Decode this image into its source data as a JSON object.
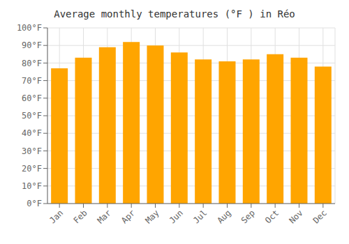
{
  "chart_data": {
    "type": "bar",
    "title": "Average monthly temperatures (°F ) in Réo",
    "categories": [
      "Jan",
      "Feb",
      "Mar",
      "Apr",
      "May",
      "Jun",
      "Jul",
      "Aug",
      "Sep",
      "Oct",
      "Nov",
      "Dec"
    ],
    "values": [
      77,
      83,
      89,
      92,
      90,
      86,
      82,
      81,
      82,
      85,
      83,
      78
    ],
    "color": "#FFA500",
    "ylim": [
      0,
      100
    ],
    "yticks": [
      {
        "value": 0,
        "label": "0°F"
      },
      {
        "value": 10,
        "label": "10°F"
      },
      {
        "value": 20,
        "label": "20°F"
      },
      {
        "value": 30,
        "label": "30°F"
      },
      {
        "value": 40,
        "label": "40°F"
      },
      {
        "value": 50,
        "label": "50°F"
      },
      {
        "value": 60,
        "label": "60°F"
      },
      {
        "value": 70,
        "label": "70°F"
      },
      {
        "value": 80,
        "label": "80°F"
      },
      {
        "value": 90,
        "label": "90°F"
      },
      {
        "value": 100,
        "label": "100°F"
      }
    ],
    "grid": true
  }
}
